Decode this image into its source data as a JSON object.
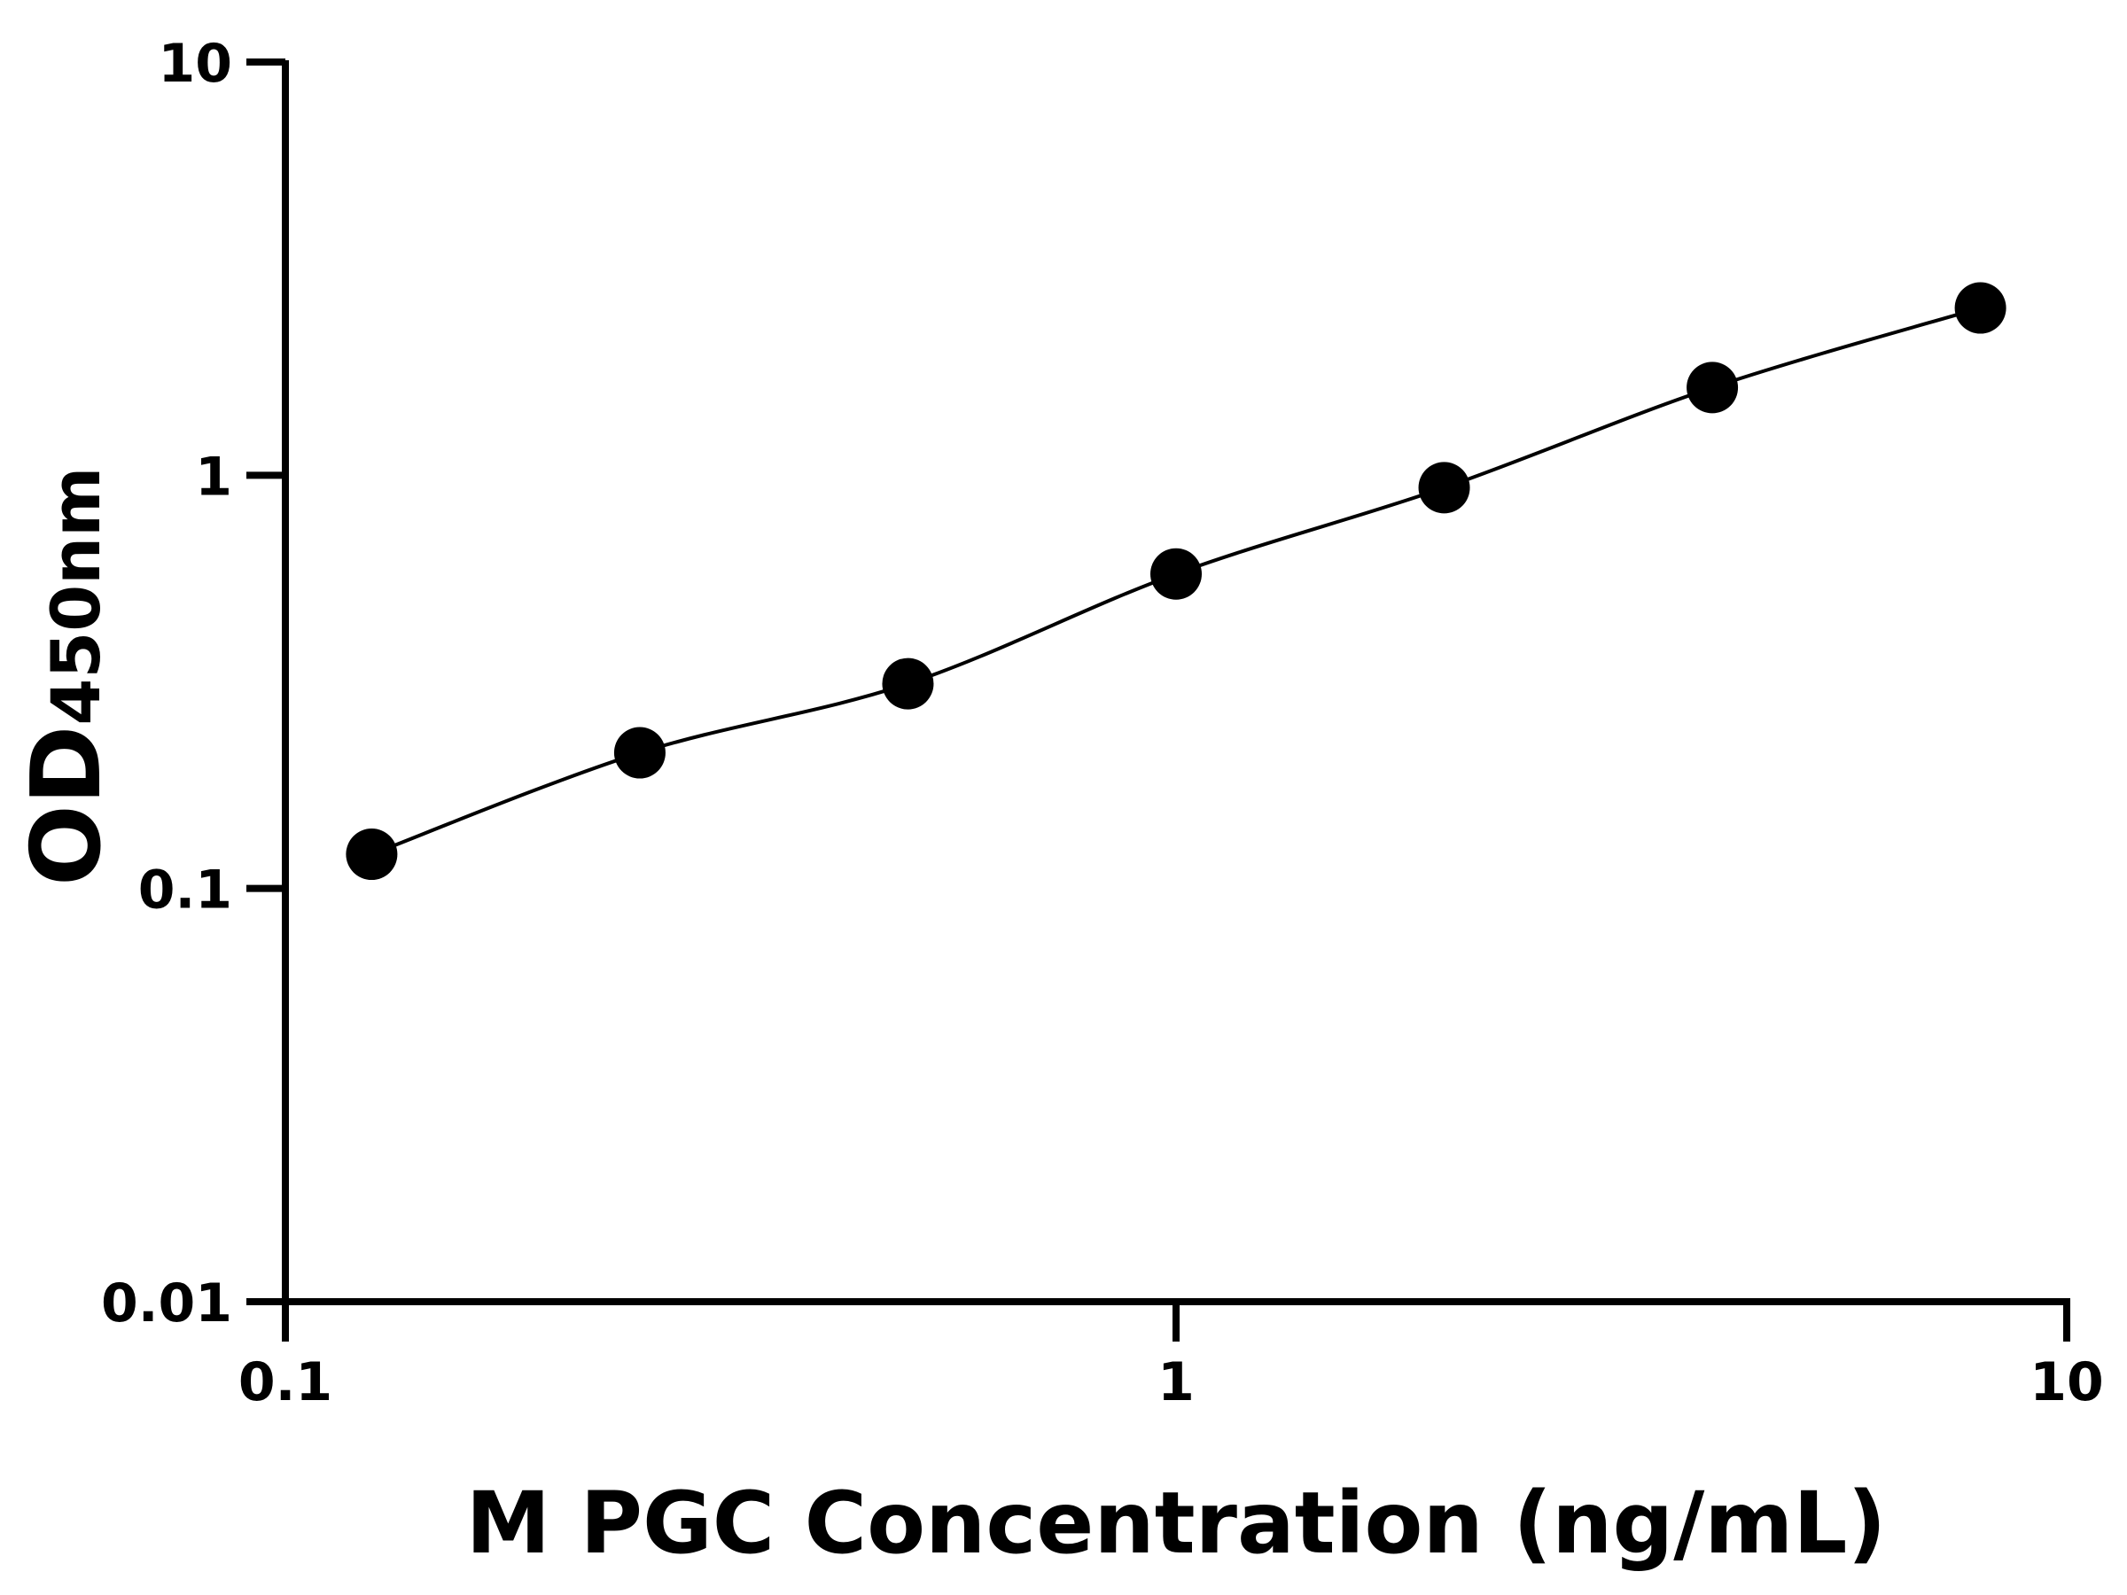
{
  "chart_data": {
    "type": "scatter",
    "title": "",
    "xlabel": "M PGC Concentration (ng/mL)",
    "ylabel": "OD",
    "ylabel_subscript": "450nm",
    "x_scale": "log",
    "y_scale": "log",
    "xlim": [
      0.1,
      10
    ],
    "ylim": [
      0.01,
      10
    ],
    "x_ticks": [
      0.1,
      1,
      10
    ],
    "x_tick_labels": [
      "0.1",
      "1",
      "10"
    ],
    "y_ticks": [
      0.01,
      0.1,
      1,
      10
    ],
    "y_tick_labels": [
      "0.01",
      "0.1",
      "1",
      "10"
    ],
    "grid": false,
    "series": [
      {
        "x": [
          0.125,
          0.25,
          0.5,
          1,
          2,
          4,
          8
        ],
        "y": [
          0.121,
          0.213,
          0.313,
          0.577,
          0.933,
          1.63,
          2.54
        ],
        "marker": "circle",
        "fit_line": true,
        "color": "#000000"
      }
    ]
  }
}
